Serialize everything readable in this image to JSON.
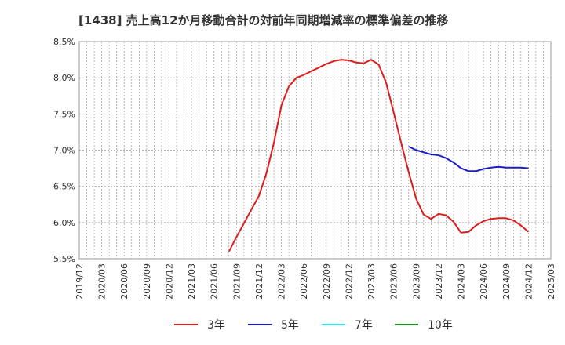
{
  "chart_data": {
    "type": "line",
    "title": "[1438]  売上高12か月移動合計の対前年同期増減率の標準偏差の推移",
    "xlabel": "",
    "ylabel": "",
    "ylim": [
      5.5,
      8.5
    ],
    "yticks": [
      "8.5%",
      "8.0%",
      "7.5%",
      "7.0%",
      "6.5%",
      "6.0%",
      "5.5%"
    ],
    "ytick_values": [
      8.5,
      8.0,
      7.5,
      7.0,
      6.5,
      6.0,
      5.5
    ],
    "xticks": [
      "2019/12",
      "2020/03",
      "2020/06",
      "2020/09",
      "2020/12",
      "2021/03",
      "2021/06",
      "2021/09",
      "2021/12",
      "2022/03",
      "2022/06",
      "2022/09",
      "2022/12",
      "2023/03",
      "2023/06",
      "2023/09",
      "2023/12",
      "2024/03",
      "2024/06",
      "2024/09",
      "2024/12",
      "2025/03"
    ],
    "x_start": "2019/12",
    "grid": true,
    "legend_position": "bottom",
    "series": [
      {
        "name": "3年",
        "color": "#dd1c1c",
        "start": "2021/08",
        "values": [
          5.6,
          5.8,
          5.99,
          6.18,
          6.37,
          6.68,
          7.1,
          7.62,
          7.88,
          8.0,
          8.04,
          8.09,
          8.14,
          8.19,
          8.23,
          8.25,
          8.24,
          8.21,
          8.2,
          8.25,
          8.18,
          7.93,
          7.52,
          7.1,
          6.7,
          6.33,
          6.11,
          6.05,
          6.12,
          6.1,
          6.01,
          5.86,
          5.87,
          5.96,
          6.02,
          6.05,
          6.06,
          6.06,
          6.03,
          5.96,
          5.87
        ]
      },
      {
        "name": "5年",
        "color": "#1c1cc8",
        "start": "2023/08",
        "values": [
          7.05,
          7.0,
          6.97,
          6.94,
          6.93,
          6.89,
          6.83,
          6.75,
          6.71,
          6.71,
          6.74,
          6.76,
          6.77,
          6.76,
          6.76,
          6.76,
          6.75
        ]
      },
      {
        "name": "7年",
        "color": "#33e6f0",
        "start": "",
        "values": []
      },
      {
        "name": "10年",
        "color": "#1c8c1c",
        "start": "",
        "values": []
      }
    ]
  }
}
